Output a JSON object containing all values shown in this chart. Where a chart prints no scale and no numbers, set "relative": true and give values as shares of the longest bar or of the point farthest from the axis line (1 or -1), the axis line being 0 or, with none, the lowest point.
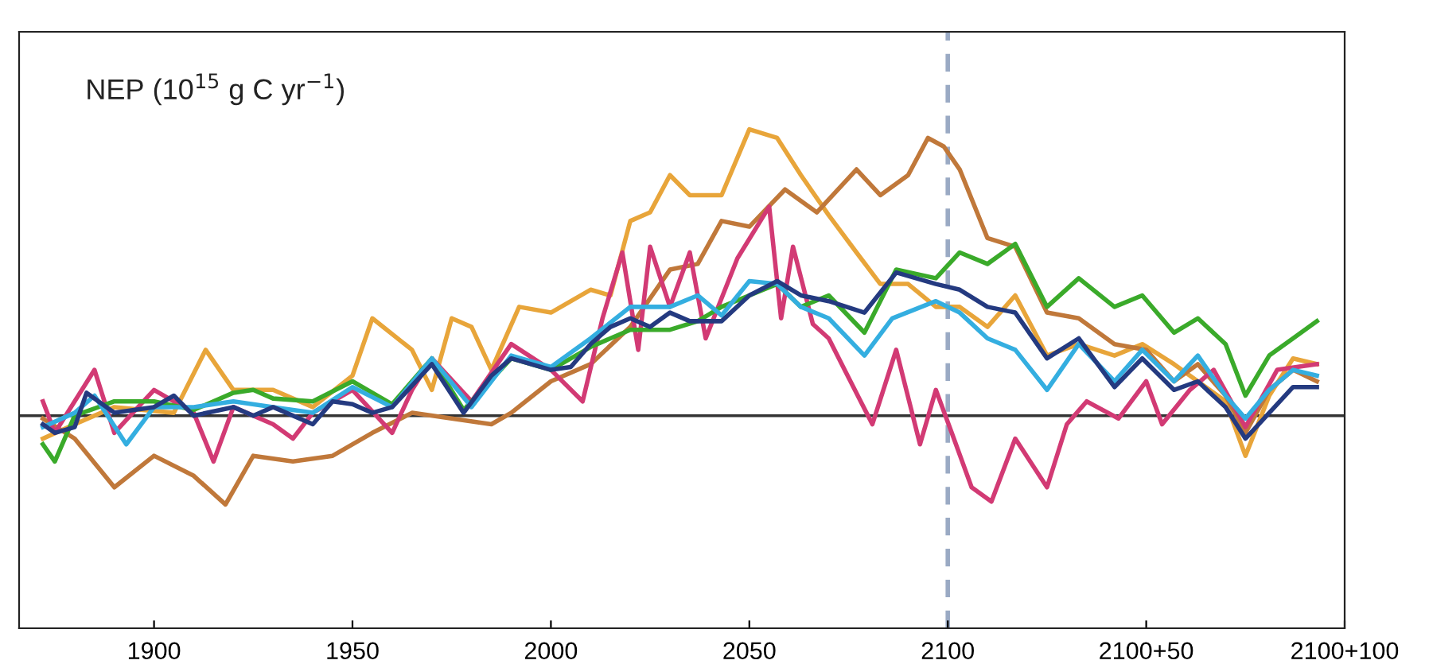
{
  "chart_data": {
    "type": "line",
    "relative": true,
    "ylabel": "NEP (10$^{15}$ g C yr$^{−1}$)",
    "xlim": [
      1866,
      2200
    ],
    "xticks": [
      1900,
      1950,
      2000,
      2050,
      2100,
      {
        "value": 2150,
        "label": "2100+50"
      },
      {
        "value": 2200,
        "label": "2100+100"
      }
    ],
    "grid": false,
    "line_style": "solid",
    "marker": "none",
    "ref_lines": [
      {
        "axis": "x",
        "value": 2100,
        "label": null,
        "color": "#9aaac4",
        "line_style": "dashed"
      }
    ],
    "series": [
      {
        "color": "#e8a53a",
        "x": [
          1872,
          1880,
          1890,
          1905,
          1913,
          1920,
          1930,
          1940,
          1950,
          1955,
          1965,
          1970,
          1975,
          1980,
          1985,
          1992,
          2000,
          2010,
          2015,
          2020,
          2025,
          2030,
          2035,
          2040,
          2043,
          2050,
          2057,
          2063,
          2070,
          2077,
          2083,
          2090,
          2097,
          2103,
          2110,
          2117,
          2125,
          2133,
          2142,
          2149,
          2157,
          2163,
          2170,
          2175,
          2181,
          2187,
          2193
        ],
        "values": [
          -0.08,
          -0.03,
          0.03,
          0.01,
          0.23,
          0.09,
          0.09,
          0.03,
          0.14,
          0.34,
          0.23,
          0.09,
          0.34,
          0.31,
          0.16,
          0.38,
          0.36,
          0.44,
          0.42,
          0.68,
          0.71,
          0.84,
          0.77,
          0.77,
          0.77,
          1.0,
          0.97,
          0.84,
          0.7,
          0.57,
          0.46,
          0.46,
          0.38,
          0.38,
          0.31,
          0.42,
          0.21,
          0.25,
          0.21,
          0.25,
          0.18,
          0.12,
          0.05,
          -0.14,
          0.07,
          0.2,
          0.18
        ]
      },
      {
        "color": "#c0783a",
        "x": [
          1872,
          1880,
          1890,
          1900,
          1910,
          1918,
          1925,
          1935,
          1945,
          1955,
          1965,
          1975,
          1985,
          1990,
          2000,
          2010,
          2020,
          2030,
          2037,
          2043,
          2050,
          2059,
          2067,
          2077,
          2083,
          2090,
          2095,
          2099,
          2103,
          2110,
          2117,
          2125,
          2133,
          2142,
          2150,
          2157,
          2163,
          2170,
          2175,
          2181,
          2187,
          2193
        ],
        "values": [
          -0.01,
          -0.08,
          -0.25,
          -0.14,
          -0.21,
          -0.31,
          -0.14,
          -0.16,
          -0.14,
          -0.06,
          0.01,
          -0.01,
          -0.03,
          0.01,
          0.12,
          0.18,
          0.31,
          0.51,
          0.53,
          0.68,
          0.66,
          0.79,
          0.71,
          0.86,
          0.77,
          0.84,
          0.97,
          0.94,
          0.86,
          0.62,
          0.59,
          0.36,
          0.34,
          0.25,
          0.23,
          0.12,
          0.18,
          0.07,
          -0.06,
          0.09,
          0.16,
          0.12
        ]
      },
      {
        "color": "#d23a74",
        "x": [
          1872,
          1875,
          1885,
          1890,
          1900,
          1910,
          1915,
          1920,
          1930,
          1935,
          1940,
          1950,
          1960,
          1965,
          1970,
          1980,
          1990,
          2000,
          2008,
          2013,
          2018,
          2022,
          2025,
          2030,
          2035,
          2039,
          2047,
          2055,
          2058,
          2061,
          2066,
          2070,
          2074,
          2081,
          2087,
          2093,
          2097,
          2101,
          2106,
          2111,
          2117,
          2125,
          2130,
          2135,
          2143,
          2150,
          2154,
          2161,
          2167,
          2175,
          2183,
          2193
        ],
        "values": [
          0.05,
          -0.06,
          0.16,
          -0.06,
          0.09,
          0.01,
          -0.16,
          0.03,
          -0.03,
          -0.08,
          0.01,
          0.09,
          -0.06,
          0.09,
          0.2,
          0.05,
          0.25,
          0.16,
          0.05,
          0.34,
          0.57,
          0.23,
          0.59,
          0.38,
          0.57,
          0.27,
          0.55,
          0.73,
          0.34,
          0.59,
          0.32,
          0.27,
          0.16,
          -0.03,
          0.23,
          -0.1,
          0.09,
          -0.06,
          -0.25,
          -0.3,
          -0.08,
          -0.25,
          -0.03,
          0.05,
          -0.01,
          0.12,
          -0.03,
          0.09,
          0.16,
          -0.04,
          0.16,
          0.18
        ]
      },
      {
        "color": "#3aaa2a",
        "x": [
          1872,
          1875,
          1880,
          1890,
          1900,
          1910,
          1920,
          1925,
          1930,
          1940,
          1950,
          1960,
          1970,
          1978,
          1990,
          2000,
          2010,
          2020,
          2030,
          2037,
          2043,
          2050,
          2057,
          2063,
          2070,
          2079,
          2087,
          2097,
          2103,
          2110,
          2117,
          2125,
          2133,
          2142,
          2149,
          2157,
          2163,
          2170,
          2175,
          2181,
          2187,
          2193
        ],
        "values": [
          -0.1,
          -0.16,
          0,
          0.05,
          0.05,
          0.02,
          0.08,
          0.09,
          0.06,
          0.05,
          0.12,
          0.04,
          0.2,
          0.02,
          0.2,
          0.16,
          0.24,
          0.3,
          0.3,
          0.33,
          0.38,
          0.42,
          0.46,
          0.38,
          0.42,
          0.29,
          0.51,
          0.48,
          0.57,
          0.53,
          0.6,
          0.38,
          0.48,
          0.38,
          0.42,
          0.29,
          0.34,
          0.25,
          0.07,
          0.21,
          0.27,
          0.33
        ]
      },
      {
        "color": "#34aee0",
        "x": [
          1872,
          1880,
          1885,
          1893,
          1900,
          1910,
          1920,
          1930,
          1940,
          1950,
          1960,
          1970,
          1980,
          1990,
          2000,
          2010,
          2020,
          2030,
          2037,
          2043,
          2050,
          2057,
          2063,
          2070,
          2079,
          2086,
          2097,
          2103,
          2110,
          2117,
          2125,
          2133,
          2142,
          2149,
          2157,
          2163,
          2170,
          2175,
          2181,
          2187,
          2193
        ],
        "values": [
          -0.04,
          0.01,
          0.07,
          -0.1,
          0.03,
          0.03,
          0.05,
          0.03,
          0.01,
          0.1,
          0.03,
          0.2,
          0.03,
          0.21,
          0.17,
          0.27,
          0.38,
          0.38,
          0.42,
          0.35,
          0.47,
          0.46,
          0.38,
          0.34,
          0.21,
          0.34,
          0.4,
          0.36,
          0.27,
          0.23,
          0.09,
          0.25,
          0.12,
          0.23,
          0.12,
          0.21,
          0.07,
          -0.01,
          0.09,
          0.16,
          0.14
        ]
      },
      {
        "color": "#243a80",
        "x": [
          1872,
          1875,
          1880,
          1883,
          1890,
          1900,
          1905,
          1910,
          1920,
          1925,
          1930,
          1940,
          1945,
          1950,
          1955,
          1960,
          1970,
          1978,
          1985,
          1990,
          2000,
          2005,
          2010,
          2015,
          2020,
          2025,
          2030,
          2035,
          2043,
          2050,
          2057,
          2063,
          2070,
          2079,
          2087,
          2097,
          2103,
          2110,
          2117,
          2125,
          2133,
          2142,
          2149,
          2157,
          2163,
          2170,
          2175,
          2181,
          2187,
          2193
        ],
        "values": [
          -0.03,
          -0.06,
          -0.04,
          0.08,
          0.01,
          0.03,
          0.07,
          0,
          0.03,
          0,
          0.03,
          -0.03,
          0.05,
          0.04,
          0.01,
          0.03,
          0.18,
          0.01,
          0.14,
          0.2,
          0.16,
          0.17,
          0.25,
          0.31,
          0.34,
          0.31,
          0.36,
          0.33,
          0.33,
          0.42,
          0.47,
          0.42,
          0.4,
          0.36,
          0.5,
          0.46,
          0.44,
          0.38,
          0.36,
          0.2,
          0.27,
          0.1,
          0.2,
          0.09,
          0.12,
          0.03,
          -0.08,
          0.01,
          0.1,
          0.1
        ]
      }
    ]
  }
}
